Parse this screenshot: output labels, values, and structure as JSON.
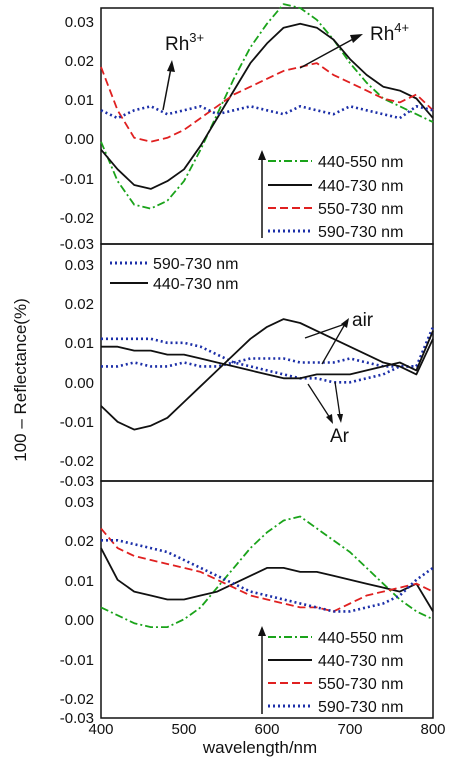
{
  "figure": {
    "ylabel": "100 – Reflectance(%)",
    "xlabel": "wavelength/nm",
    "x_ticks": [
      "400",
      "500",
      "600",
      "700",
      "800"
    ],
    "y_ticks": [
      "0.03",
      "0.02",
      "0.01",
      "0.00",
      "-0.01",
      "-0.02",
      "-0.03"
    ],
    "colors": {
      "s440_550": "#1aa31a",
      "s440_730": "#111111",
      "s550_730": "#e02020",
      "s590_730": "#1c2fa8"
    }
  },
  "chart_data": [
    {
      "type": "line",
      "panel": "top",
      "xlim": [
        400,
        800
      ],
      "ylim": [
        -0.03,
        0.03
      ],
      "annotations": [
        {
          "text": "Rh",
          "sup": "3+"
        },
        {
          "text": "Rh",
          "sup": "4+"
        }
      ],
      "legend_position": "bottom-right",
      "series": [
        {
          "name": "440-550 nm",
          "style": "dash-dot",
          "color": "#1aa31a",
          "x": [
            400,
            420,
            440,
            460,
            480,
            500,
            520,
            540,
            560,
            580,
            600,
            620,
            640,
            660,
            680,
            700,
            720,
            740,
            760,
            780,
            800
          ],
          "y": [
            -0.004,
            -0.014,
            -0.02,
            -0.021,
            -0.019,
            -0.014,
            -0.006,
            0.003,
            0.012,
            0.02,
            0.026,
            0.031,
            0.03,
            0.027,
            0.022,
            0.016,
            0.011,
            0.007,
            0.005,
            0.003,
            0.001
          ]
        },
        {
          "name": "440-730 nm",
          "style": "solid",
          "color": "#111111",
          "x": [
            400,
            420,
            440,
            460,
            480,
            500,
            520,
            540,
            560,
            580,
            600,
            620,
            640,
            660,
            680,
            700,
            720,
            740,
            760,
            780,
            800
          ],
          "y": [
            -0.006,
            -0.011,
            -0.015,
            -0.016,
            -0.014,
            -0.011,
            -0.005,
            0.002,
            0.009,
            0.016,
            0.021,
            0.025,
            0.026,
            0.025,
            0.022,
            0.017,
            0.013,
            0.01,
            0.009,
            0.007,
            0.002
          ]
        },
        {
          "name": "550-730 nm",
          "style": "dashed",
          "color": "#e02020",
          "x": [
            400,
            420,
            440,
            460,
            480,
            500,
            520,
            540,
            560,
            580,
            600,
            620,
            640,
            660,
            680,
            700,
            720,
            740,
            760,
            780,
            800
          ],
          "y": [
            0.015,
            0.004,
            -0.003,
            -0.004,
            -0.003,
            -0.001,
            0.002,
            0.005,
            0.008,
            0.01,
            0.012,
            0.014,
            0.015,
            0.016,
            0.013,
            0.011,
            0.009,
            0.007,
            0.006,
            0.008,
            0.004
          ]
        },
        {
          "name": "590-730 nm",
          "style": "dotted",
          "color": "#1c2fa8",
          "x": [
            400,
            420,
            440,
            460,
            480,
            500,
            520,
            540,
            560,
            580,
            600,
            620,
            640,
            660,
            680,
            700,
            720,
            740,
            760,
            780,
            800
          ],
          "y": [
            0.004,
            0.002,
            0.004,
            0.005,
            0.003,
            0.004,
            0.005,
            0.003,
            0.004,
            0.005,
            0.004,
            0.003,
            0.005,
            0.004,
            0.003,
            0.005,
            0.004,
            0.003,
            0.002,
            0.005,
            0.004
          ]
        }
      ]
    },
    {
      "type": "line",
      "panel": "middle",
      "xlim": [
        400,
        800
      ],
      "ylim": [
        -0.03,
        0.03
      ],
      "annotations": [
        {
          "text": "air"
        },
        {
          "text": "Ar"
        }
      ],
      "legend_position": "top-left",
      "series": [
        {
          "name": "590-730 nm",
          "style": "dotted",
          "color": "#1c2fa8",
          "x": [
            400,
            420,
            440,
            460,
            480,
            500,
            520,
            540,
            560,
            580,
            600,
            620,
            640,
            660,
            680,
            700,
            720,
            740,
            760,
            780,
            800
          ],
          "y": [
            0.006,
            0.006,
            0.006,
            0.006,
            0.005,
            0.005,
            0.004,
            0.002,
            0.0,
            -0.001,
            -0.002,
            -0.003,
            -0.004,
            -0.004,
            -0.005,
            -0.005,
            -0.004,
            -0.003,
            -0.001,
            -0.001,
            0.008
          ]
        },
        {
          "name": "",
          "style": "dotted",
          "color": "#1c2fa8",
          "x": [
            400,
            420,
            440,
            460,
            480,
            500,
            520,
            540,
            560,
            580,
            600,
            620,
            640,
            660,
            680,
            700,
            720,
            740,
            760,
            780,
            800
          ],
          "y": [
            -0.001,
            -0.001,
            0.0,
            -0.001,
            -0.001,
            0.0,
            -0.001,
            -0.001,
            0.0,
            0.001,
            0.001,
            0.001,
            0.0,
            0.0,
            0.0,
            0.001,
            0.0,
            -0.001,
            -0.001,
            -0.001,
            0.009
          ]
        },
        {
          "name": "440-730 nm",
          "style": "solid",
          "color": "#111111",
          "x": [
            400,
            420,
            440,
            460,
            480,
            500,
            520,
            540,
            560,
            580,
            600,
            620,
            640,
            660,
            680,
            700,
            720,
            740,
            760,
            780,
            800
          ],
          "y": [
            -0.011,
            -0.015,
            -0.017,
            -0.016,
            -0.014,
            -0.01,
            -0.006,
            -0.002,
            0.002,
            0.006,
            0.009,
            0.011,
            0.01,
            0.008,
            0.006,
            0.004,
            0.002,
            0.0,
            -0.001,
            -0.003,
            0.006
          ]
        },
        {
          "name": "",
          "style": "solid",
          "color": "#111111",
          "x": [
            400,
            420,
            440,
            460,
            480,
            500,
            520,
            540,
            560,
            580,
            600,
            620,
            640,
            660,
            680,
            700,
            720,
            740,
            760,
            780,
            800
          ],
          "y": [
            0.004,
            0.004,
            0.003,
            0.003,
            0.002,
            0.002,
            0.001,
            0.0,
            -0.001,
            -0.002,
            -0.003,
            -0.004,
            -0.004,
            -0.003,
            -0.003,
            -0.003,
            -0.002,
            -0.001,
            0.0,
            -0.002,
            0.008
          ]
        }
      ]
    },
    {
      "type": "line",
      "panel": "bottom",
      "xlim": [
        400,
        800
      ],
      "ylim": [
        -0.03,
        0.03
      ],
      "legend_position": "bottom-right",
      "series": [
        {
          "name": "440-550 nm",
          "style": "dash-dot",
          "color": "#1aa31a",
          "x": [
            400,
            420,
            440,
            460,
            480,
            500,
            520,
            540,
            560,
            580,
            600,
            620,
            640,
            660,
            680,
            700,
            720,
            740,
            760,
            780,
            800
          ],
          "y": [
            -0.002,
            -0.004,
            -0.006,
            -0.007,
            -0.007,
            -0.005,
            -0.002,
            0.003,
            0.008,
            0.013,
            0.017,
            0.02,
            0.021,
            0.018,
            0.015,
            0.012,
            0.008,
            0.004,
            0.0,
            -0.003,
            -0.005
          ]
        },
        {
          "name": "440-730 nm",
          "style": "solid",
          "color": "#111111",
          "x": [
            400,
            420,
            440,
            460,
            480,
            500,
            520,
            540,
            560,
            580,
            600,
            620,
            640,
            660,
            680,
            700,
            720,
            740,
            760,
            780,
            800
          ],
          "y": [
            0.013,
            0.005,
            0.002,
            0.001,
            0.0,
            0.0,
            0.001,
            0.002,
            0.004,
            0.006,
            0.008,
            0.008,
            0.007,
            0.007,
            0.006,
            0.005,
            0.004,
            0.003,
            0.002,
            0.004,
            -0.003
          ]
        },
        {
          "name": "550-730 nm",
          "style": "dashed",
          "color": "#e02020",
          "x": [
            400,
            420,
            440,
            460,
            480,
            500,
            520,
            540,
            560,
            580,
            600,
            620,
            640,
            660,
            680,
            700,
            720,
            740,
            760,
            780,
            800
          ],
          "y": [
            0.018,
            0.013,
            0.011,
            0.01,
            0.009,
            0.008,
            0.007,
            0.005,
            0.003,
            0.001,
            0.0,
            -0.001,
            -0.002,
            -0.002,
            -0.003,
            -0.001,
            0.001,
            0.002,
            0.003,
            0.004,
            0.002
          ]
        },
        {
          "name": "590-730 nm",
          "style": "dotted",
          "color": "#1c2fa8",
          "x": [
            400,
            420,
            440,
            460,
            480,
            500,
            520,
            540,
            560,
            580,
            600,
            620,
            640,
            660,
            680,
            700,
            720,
            740,
            760,
            780,
            800
          ],
          "y": [
            0.015,
            0.015,
            0.014,
            0.013,
            0.012,
            0.01,
            0.008,
            0.006,
            0.004,
            0.002,
            0.001,
            0.0,
            -0.001,
            -0.002,
            -0.003,
            -0.003,
            -0.002,
            -0.001,
            0.001,
            0.005,
            0.008
          ]
        }
      ]
    }
  ]
}
